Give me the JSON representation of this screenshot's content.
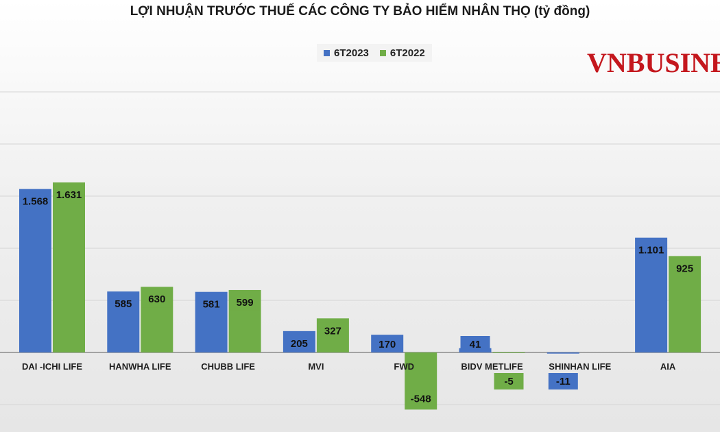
{
  "title": "LỢI NHUẬN TRƯỚC THUẾ CÁC CÔNG TY BẢO HIỂM NHÂN THỌ (tỷ đồng)",
  "watermark": "VNBUSINES",
  "chart_data": {
    "type": "bar",
    "title": "LỢI NHUẬN TRƯỚC THUẾ CÁC CÔNG TY BẢO HIỂM NHÂN THỌ (tỷ đồng)",
    "categories": [
      "DAI -ICHI LIFE",
      "HANWHA LIFE",
      "CHUBB LIFE",
      "MVI",
      "FWD",
      "BIDV METLIFE",
      "SHINHAN LIFE",
      "AIA"
    ],
    "series": [
      {
        "name": "6T2023",
        "color": "#4472c4",
        "values": [
          1568,
          585,
          581,
          205,
          170,
          41,
          -11,
          1101
        ],
        "labels": [
          "1.568",
          "585",
          "581",
          "205",
          "170",
          "41",
          "-11",
          "1.101"
        ]
      },
      {
        "name": "6T2022",
        "color": "#70ad47",
        "values": [
          1631,
          630,
          599,
          327,
          -548,
          -5,
          null,
          925
        ],
        "labels": [
          "1.631",
          "630",
          "599",
          "327",
          "-548",
          "-5",
          "",
          "925"
        ]
      }
    ],
    "ylim": [
      -600,
      2000
    ],
    "grid": true,
    "legend": "top-center"
  }
}
